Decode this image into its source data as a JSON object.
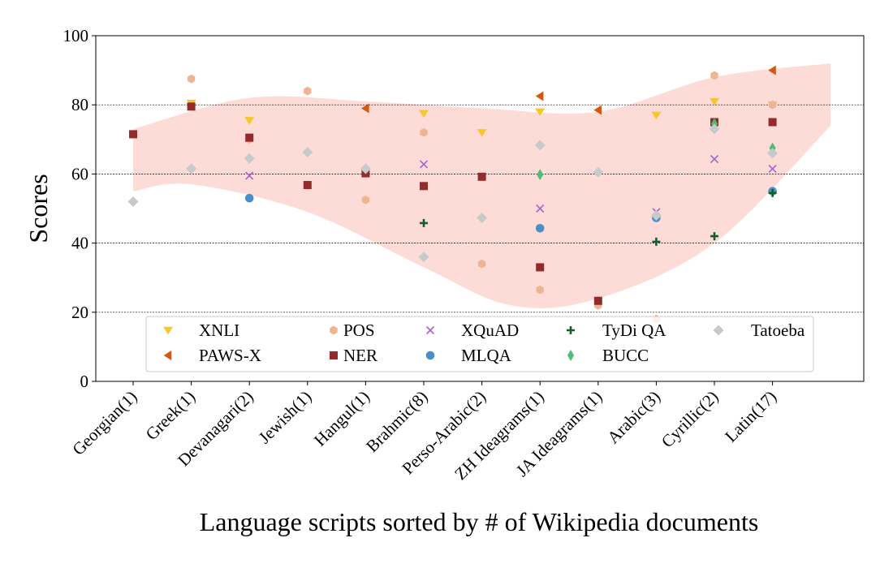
{
  "chart_data": {
    "type": "scatter",
    "title": "",
    "xlabel": "Language scripts sorted by # of Wikipedia documents",
    "ylabel": "Scores",
    "ylim": [
      0,
      100
    ],
    "yticks": [
      0,
      20,
      40,
      60,
      80,
      100
    ],
    "gridlines_y": [
      20,
      40,
      60,
      80
    ],
    "legend_position": "lower-center",
    "categories": [
      "Georgian(1)",
      "Greek(1)",
      "Devanagari(2)",
      "Jewish(1)",
      "Hangul(1)",
      "Brahmic(8)",
      "Perso-Arabic(2)",
      "ZH Ideagrams(1)",
      "JA Ideagrams(1)",
      "Arabic(3)",
      "Cyrillic(2)",
      "Latin(17)"
    ],
    "band": {
      "color": "#fdd5d0",
      "upper": [
        {
          "x": 0,
          "y": 73
        },
        {
          "x": 2,
          "y": 82
        },
        {
          "x": 4,
          "y": 81
        },
        {
          "x": 6,
          "y": 79
        },
        {
          "x": 8,
          "y": 78
        },
        {
          "x": 10,
          "y": 88
        },
        {
          "x": 12.0,
          "y": 92
        }
      ],
      "lower": [
        {
          "x": 0,
          "y": 55
        },
        {
          "x": 1,
          "y": 57
        },
        {
          "x": 3,
          "y": 49
        },
        {
          "x": 5,
          "y": 33
        },
        {
          "x": 6.5,
          "y": 22
        },
        {
          "x": 8,
          "y": 24
        },
        {
          "x": 10,
          "y": 40
        },
        {
          "x": 12.0,
          "y": 74
        }
      ]
    },
    "series": [
      {
        "name": "XNLI",
        "marker": "tri-down",
        "color": "#f7c52c",
        "points": [
          {
            "x": 1,
            "y": 80.5
          },
          {
            "x": 2,
            "y": 75.5
          },
          {
            "x": 5,
            "y": 77.5
          },
          {
            "x": 6,
            "y": 72
          },
          {
            "x": 7,
            "y": 78
          },
          {
            "x": 9,
            "y": 77
          },
          {
            "x": 10,
            "y": 81
          },
          {
            "x": 11,
            "y": 80
          }
        ]
      },
      {
        "name": "PAWS-X",
        "marker": "tri-left",
        "color": "#d4580f",
        "points": [
          {
            "x": 4,
            "y": 79
          },
          {
            "x": 7,
            "y": 82.5
          },
          {
            "x": 8,
            "y": 78.5
          },
          {
            "x": 11,
            "y": 90
          }
        ]
      },
      {
        "name": "POS",
        "marker": "hexagon",
        "color": "#efb592",
        "points": [
          {
            "x": 1,
            "y": 87.5
          },
          {
            "x": 2,
            "y": 70
          },
          {
            "x": 3,
            "y": 84
          },
          {
            "x": 4,
            "y": 52.5
          },
          {
            "x": 5,
            "y": 72
          },
          {
            "x": 6,
            "y": 34
          },
          {
            "x": 7,
            "y": 26.5
          },
          {
            "x": 8,
            "y": 22
          },
          {
            "x": 9,
            "y": 18
          },
          {
            "x": 10,
            "y": 88.5
          },
          {
            "x": 11,
            "y": 80
          }
        ]
      },
      {
        "name": "NER",
        "marker": "square",
        "color": "#932b2a",
        "points": [
          {
            "x": 0,
            "y": 71.5
          },
          {
            "x": 1,
            "y": 79.5
          },
          {
            "x": 2,
            "y": 70.5
          },
          {
            "x": 3,
            "y": 56.8
          },
          {
            "x": 4,
            "y": 60.2
          },
          {
            "x": 5,
            "y": 56.5
          },
          {
            "x": 6,
            "y": 59.2
          },
          {
            "x": 7,
            "y": 33
          },
          {
            "x": 8,
            "y": 23.3
          },
          {
            "x": 10,
            "y": 75
          },
          {
            "x": 11,
            "y": 75
          }
        ]
      },
      {
        "name": "XQuAD",
        "marker": "x",
        "color": "#a565c9",
        "points": [
          {
            "x": 2,
            "y": 59.5
          },
          {
            "x": 5,
            "y": 62.8
          },
          {
            "x": 7,
            "y": 50
          },
          {
            "x": 9,
            "y": 49
          },
          {
            "x": 10,
            "y": 64.3
          },
          {
            "x": 11,
            "y": 61.5
          }
        ]
      },
      {
        "name": "MLQA",
        "marker": "circle",
        "color": "#4a8fca",
        "points": [
          {
            "x": 2,
            "y": 53
          },
          {
            "x": 7,
            "y": 44.3
          },
          {
            "x": 9,
            "y": 47.3
          },
          {
            "x": 11,
            "y": 55
          }
        ]
      },
      {
        "name": "TyDi QA",
        "marker": "plus",
        "color": "#125f2c",
        "points": [
          {
            "x": 5,
            "y": 45.8
          },
          {
            "x": 9,
            "y": 40.4
          },
          {
            "x": 10,
            "y": 42
          },
          {
            "x": 11,
            "y": 54.5
          }
        ]
      },
      {
        "name": "BUCC",
        "marker": "diamond-thin",
        "color": "#4fbc77",
        "points": [
          {
            "x": 7,
            "y": 59.8
          },
          {
            "x": 10,
            "y": 74.5
          },
          {
            "x": 11,
            "y": 67.5
          }
        ]
      },
      {
        "name": "Tatoeba",
        "marker": "diamond",
        "color": "#c7cacb",
        "points": [
          {
            "x": 0,
            "y": 52
          },
          {
            "x": 1,
            "y": 61.5
          },
          {
            "x": 2,
            "y": 64.5
          },
          {
            "x": 3,
            "y": 66.3
          },
          {
            "x": 4,
            "y": 61.5
          },
          {
            "x": 5,
            "y": 36
          },
          {
            "x": 6,
            "y": 47.3
          },
          {
            "x": 7,
            "y": 68.3
          },
          {
            "x": 8,
            "y": 60.5
          },
          {
            "x": 9,
            "y": 48
          },
          {
            "x": 10,
            "y": 73
          },
          {
            "x": 11,
            "y": 66
          }
        ]
      }
    ]
  }
}
